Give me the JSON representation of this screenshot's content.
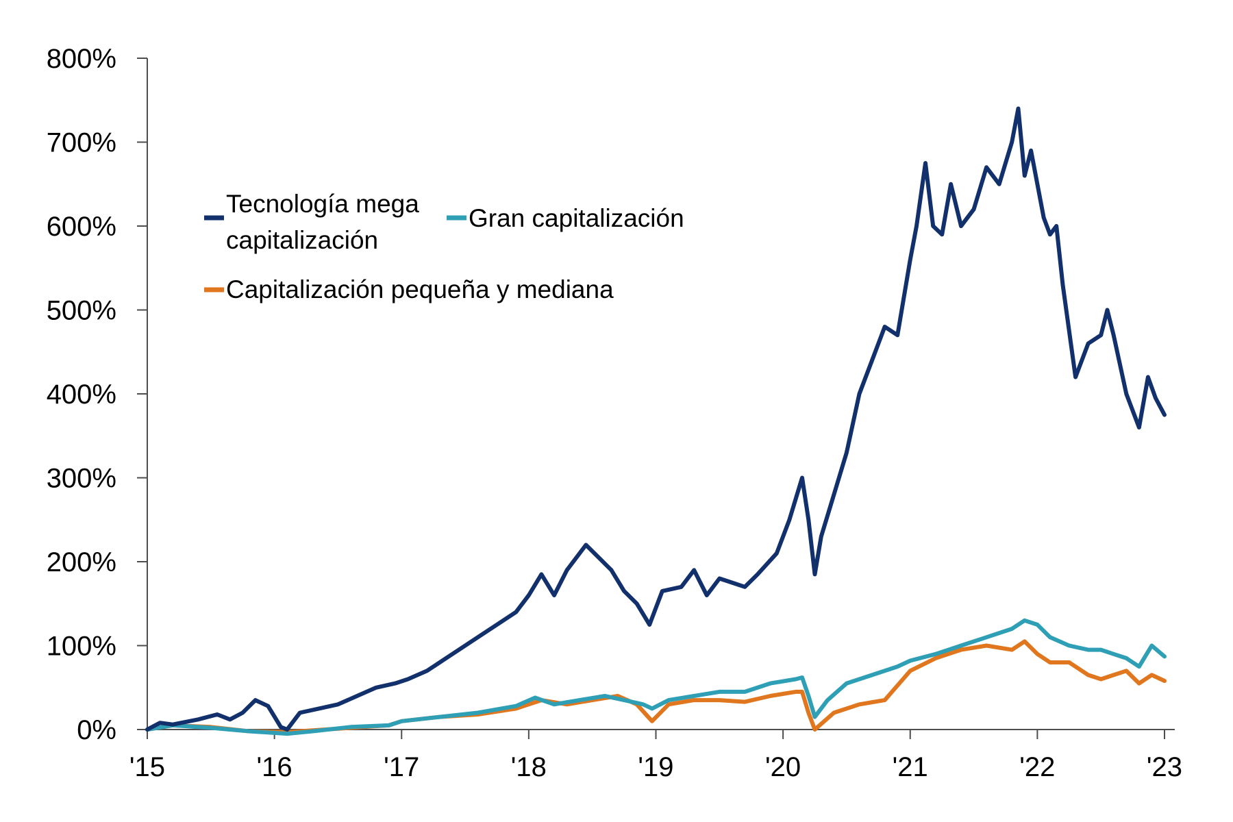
{
  "chart_data": {
    "type": "line",
    "title": "",
    "xlabel": "",
    "ylabel": "",
    "x_ticks": [
      "'15",
      "'16",
      "'17",
      "'18",
      "'19",
      "'20",
      "'21",
      "'22",
      "'23"
    ],
    "x_range": [
      2015,
      2023
    ],
    "y_ticks": [
      "0%",
      "100%",
      "200%",
      "300%",
      "400%",
      "500%",
      "600%",
      "700%",
      "800%"
    ],
    "y_range": [
      0,
      800
    ],
    "grid": false,
    "legend": {
      "placement": "top-left",
      "entries": [
        {
          "name_lines": [
            "Tecnología mega",
            "capitalización"
          ]
        },
        {
          "name_lines": [
            "Gran capitalización"
          ]
        },
        {
          "name_lines": [
            "Capitalización pequeña y mediana"
          ]
        }
      ]
    },
    "series": [
      {
        "name": "Tecnología mega capitalización",
        "color": "#12306b",
        "points": [
          [
            2015.0,
            0
          ],
          [
            2015.1,
            8
          ],
          [
            2015.2,
            6
          ],
          [
            2015.4,
            12
          ],
          [
            2015.55,
            18
          ],
          [
            2015.65,
            12
          ],
          [
            2015.75,
            20
          ],
          [
            2015.85,
            35
          ],
          [
            2015.95,
            28
          ],
          [
            2016.05,
            3
          ],
          [
            2016.1,
            0
          ],
          [
            2016.2,
            20
          ],
          [
            2016.35,
            25
          ],
          [
            2016.5,
            30
          ],
          [
            2016.65,
            40
          ],
          [
            2016.8,
            50
          ],
          [
            2016.95,
            55
          ],
          [
            2017.05,
            60
          ],
          [
            2017.2,
            70
          ],
          [
            2017.35,
            85
          ],
          [
            2017.45,
            95
          ],
          [
            2017.6,
            110
          ],
          [
            2017.75,
            125
          ],
          [
            2017.9,
            140
          ],
          [
            2018.0,
            160
          ],
          [
            2018.1,
            185
          ],
          [
            2018.2,
            160
          ],
          [
            2018.3,
            190
          ],
          [
            2018.45,
            220
          ],
          [
            2018.55,
            205
          ],
          [
            2018.65,
            190
          ],
          [
            2018.75,
            165
          ],
          [
            2018.85,
            150
          ],
          [
            2018.95,
            125
          ],
          [
            2019.05,
            165
          ],
          [
            2019.2,
            170
          ],
          [
            2019.3,
            190
          ],
          [
            2019.4,
            160
          ],
          [
            2019.5,
            180
          ],
          [
            2019.6,
            175
          ],
          [
            2019.7,
            170
          ],
          [
            2019.8,
            185
          ],
          [
            2019.95,
            210
          ],
          [
            2020.05,
            250
          ],
          [
            2020.15,
            300
          ],
          [
            2020.2,
            250
          ],
          [
            2020.25,
            185
          ],
          [
            2020.3,
            230
          ],
          [
            2020.4,
            280
          ],
          [
            2020.5,
            330
          ],
          [
            2020.6,
            400
          ],
          [
            2020.7,
            440
          ],
          [
            2020.8,
            480
          ],
          [
            2020.9,
            470
          ],
          [
            2021.0,
            560
          ],
          [
            2021.05,
            600
          ],
          [
            2021.12,
            675
          ],
          [
            2021.18,
            600
          ],
          [
            2021.25,
            590
          ],
          [
            2021.32,
            650
          ],
          [
            2021.4,
            600
          ],
          [
            2021.5,
            620
          ],
          [
            2021.6,
            670
          ],
          [
            2021.7,
            650
          ],
          [
            2021.8,
            700
          ],
          [
            2021.85,
            740
          ],
          [
            2021.9,
            660
          ],
          [
            2021.95,
            690
          ],
          [
            2022.0,
            650
          ],
          [
            2022.05,
            610
          ],
          [
            2022.1,
            590
          ],
          [
            2022.15,
            600
          ],
          [
            2022.2,
            530
          ],
          [
            2022.3,
            420
          ],
          [
            2022.4,
            460
          ],
          [
            2022.5,
            470
          ],
          [
            2022.55,
            500
          ],
          [
            2022.6,
            470
          ],
          [
            2022.7,
            400
          ],
          [
            2022.8,
            360
          ],
          [
            2022.87,
            420
          ],
          [
            2022.93,
            395
          ],
          [
            2023.0,
            375
          ]
        ]
      },
      {
        "name": "Gran capitalización",
        "color": "#2f9fb5",
        "points": [
          [
            2015.0,
            0
          ],
          [
            2015.2,
            5
          ],
          [
            2015.5,
            2
          ],
          [
            2015.8,
            -2
          ],
          [
            2016.1,
            -5
          ],
          [
            2016.3,
            -2
          ],
          [
            2016.6,
            3
          ],
          [
            2016.9,
            5
          ],
          [
            2017.0,
            10
          ],
          [
            2017.3,
            15
          ],
          [
            2017.6,
            20
          ],
          [
            2017.9,
            28
          ],
          [
            2018.05,
            38
          ],
          [
            2018.2,
            30
          ],
          [
            2018.4,
            35
          ],
          [
            2018.6,
            40
          ],
          [
            2018.75,
            35
          ],
          [
            2018.9,
            30
          ],
          [
            2018.97,
            25
          ],
          [
            2019.1,
            35
          ],
          [
            2019.3,
            40
          ],
          [
            2019.5,
            45
          ],
          [
            2019.7,
            45
          ],
          [
            2019.9,
            55
          ],
          [
            2020.1,
            60
          ],
          [
            2020.15,
            62
          ],
          [
            2020.2,
            40
          ],
          [
            2020.25,
            15
          ],
          [
            2020.35,
            35
          ],
          [
            2020.5,
            55
          ],
          [
            2020.7,
            65
          ],
          [
            2020.9,
            75
          ],
          [
            2021.0,
            82
          ],
          [
            2021.2,
            90
          ],
          [
            2021.4,
            100
          ],
          [
            2021.6,
            110
          ],
          [
            2021.8,
            120
          ],
          [
            2021.9,
            130
          ],
          [
            2022.0,
            125
          ],
          [
            2022.1,
            110
          ],
          [
            2022.25,
            100
          ],
          [
            2022.4,
            95
          ],
          [
            2022.5,
            95
          ],
          [
            2022.6,
            90
          ],
          [
            2022.7,
            85
          ],
          [
            2022.8,
            75
          ],
          [
            2022.9,
            100
          ],
          [
            2023.0,
            87
          ]
        ]
      },
      {
        "name": "Capitalización pequeña y mediana",
        "color": "#e0761d",
        "points": [
          [
            2015.0,
            0
          ],
          [
            2015.2,
            5
          ],
          [
            2015.5,
            3
          ],
          [
            2015.8,
            -2
          ],
          [
            2016.1,
            -3
          ],
          [
            2016.4,
            0
          ],
          [
            2016.7,
            3
          ],
          [
            2016.9,
            5
          ],
          [
            2017.0,
            10
          ],
          [
            2017.3,
            15
          ],
          [
            2017.6,
            18
          ],
          [
            2017.9,
            25
          ],
          [
            2018.1,
            35
          ],
          [
            2018.3,
            30
          ],
          [
            2018.5,
            35
          ],
          [
            2018.7,
            40
          ],
          [
            2018.85,
            30
          ],
          [
            2018.97,
            10
          ],
          [
            2019.1,
            30
          ],
          [
            2019.3,
            35
          ],
          [
            2019.5,
            35
          ],
          [
            2019.7,
            33
          ],
          [
            2019.9,
            40
          ],
          [
            2020.1,
            45
          ],
          [
            2020.15,
            45
          ],
          [
            2020.2,
            20
          ],
          [
            2020.25,
            0
          ],
          [
            2020.4,
            20
          ],
          [
            2020.6,
            30
          ],
          [
            2020.8,
            35
          ],
          [
            2021.0,
            70
          ],
          [
            2021.2,
            85
          ],
          [
            2021.4,
            95
          ],
          [
            2021.6,
            100
          ],
          [
            2021.8,
            95
          ],
          [
            2021.9,
            105
          ],
          [
            2022.0,
            90
          ],
          [
            2022.1,
            80
          ],
          [
            2022.25,
            80
          ],
          [
            2022.4,
            65
          ],
          [
            2022.5,
            60
          ],
          [
            2022.6,
            65
          ],
          [
            2022.7,
            70
          ],
          [
            2022.8,
            55
          ],
          [
            2022.9,
            65
          ],
          [
            2023.0,
            58
          ]
        ]
      }
    ]
  }
}
